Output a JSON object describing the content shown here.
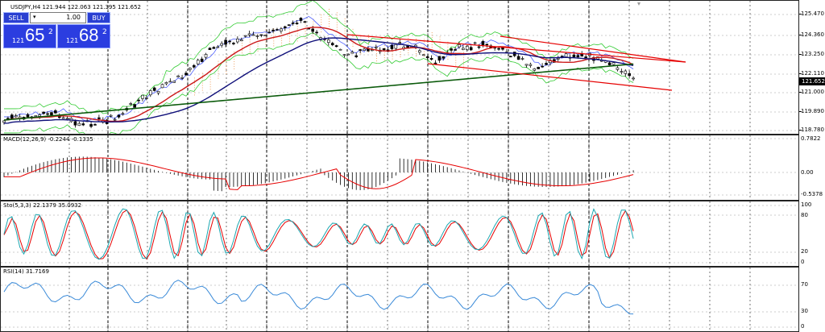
{
  "symbol_info": {
    "label": "USDJPY,H4  121.944 122.063 121.395 121.652"
  },
  "trade_panel": {
    "sell_label": "SELL",
    "buy_label": "BUY",
    "lot_value": "1.00",
    "sell_price_small": "121",
    "sell_price_big": "65",
    "sell_price_sup": "2",
    "buy_price_small": "121",
    "buy_price_big": "68",
    "buy_price_sup": "2"
  },
  "price_axis": {
    "ticks": [
      "125.470",
      "124.360",
      "123.250",
      "122.110",
      "121.000",
      "119.890",
      "118.780"
    ],
    "current_price": "121.652"
  },
  "macd": {
    "label": "MACD(12,26,9) -0.2244 -0.1335",
    "ticks": [
      "0.7822",
      "0.00",
      "-0.5378"
    ]
  },
  "stochastic": {
    "label": "Sto(5,3,3) 22.1379 35.0932",
    "ticks": [
      "100",
      "80",
      "20",
      "0"
    ]
  },
  "rsi": {
    "label": "RSI(14) 31.7169",
    "ticks": [
      "70",
      "30",
      "0"
    ]
  },
  "colors": {
    "background": "#ffffff",
    "candle": "#000000",
    "ma_red": "#cc1a1a",
    "ma_navy": "#10107a",
    "ma_green": "#0a5a0a",
    "channel": "#e60000",
    "signal": "#e60000",
    "stoch_main": "#1aa6b0",
    "rsi_line": "#3a8ad8",
    "panel_blue": "#2b3de0"
  }
}
